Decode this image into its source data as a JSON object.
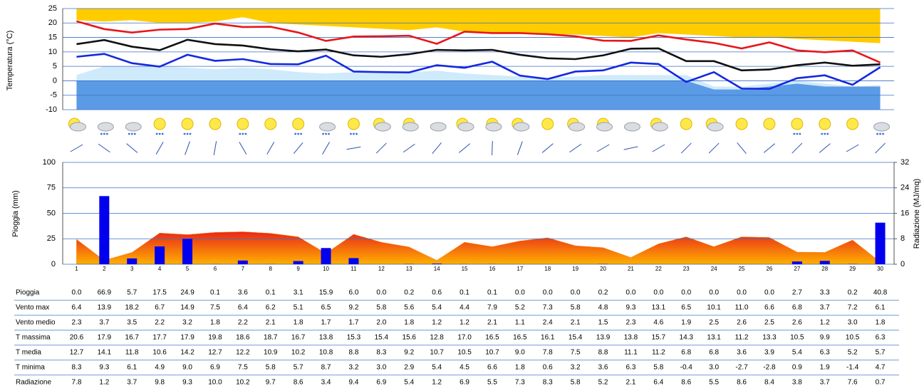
{
  "chart_data": [
    {
      "type": "line",
      "ylabel": "Temperatura (°C)",
      "ylim": [
        -10,
        25
      ],
      "yticks": [
        -10,
        -5,
        0,
        5,
        10,
        15,
        20,
        25
      ],
      "grid": true,
      "areas": [
        {
          "color": "#ffcc00",
          "base": 25,
          "values": [
            21,
            20.5,
            21,
            20,
            20,
            20.5,
            22,
            20,
            19.5,
            19,
            18.5,
            18,
            17.5,
            18.5,
            17,
            16.5,
            16.5,
            16,
            16,
            15.5,
            15,
            16.5,
            16,
            15.5,
            15,
            15,
            14.5,
            14,
            13.5,
            13
          ]
        },
        {
          "color": "#cfeafb",
          "base": -10,
          "values": [
            2,
            5,
            5,
            5,
            4.5,
            4,
            4.5,
            4,
            3,
            2.5,
            3,
            3.5,
            3,
            3.5,
            2.5,
            2,
            1.5,
            1,
            1.5,
            2,
            2,
            2,
            2,
            -2,
            -2,
            -1,
            0,
            -1,
            -2,
            -1.5
          ]
        },
        {
          "color": "#5b9be6",
          "base": -10,
          "values": [
            0,
            0,
            0,
            0,
            0,
            0,
            0,
            0,
            0,
            0,
            0,
            0,
            0,
            0,
            0,
            0,
            0,
            0,
            0,
            0,
            0,
            0,
            0,
            -3,
            -3,
            -2,
            -1,
            -2,
            -2,
            -2
          ]
        }
      ],
      "series": [
        {
          "name": "T massima",
          "color": "#e8161b",
          "values": [
            20.6,
            17.9,
            16.7,
            17.7,
            17.9,
            19.8,
            18.6,
            18.7,
            16.7,
            13.8,
            15.3,
            15.4,
            15.6,
            12.8,
            17,
            16.5,
            16.5,
            16.1,
            15.4,
            13.9,
            13.8,
            15.7,
            14.3,
            13.1,
            11.2,
            13.3,
            10.5,
            9.9,
            10.5,
            6.3
          ],
          "value_labels": [
            "20.6",
            "17.9",
            "16.7",
            "17.7",
            "17.9",
            "19.8",
            "18.6",
            "18.7",
            "16.7",
            "13.8",
            "15.3",
            "15.4",
            "15.6",
            "12.8",
            "17.0",
            "16.5",
            "16.5",
            "16.1",
            "15.4",
            "13.9",
            "13.8",
            "15.7",
            "14.3",
            "13.1",
            "11.2",
            "13.3",
            "10.5",
            "9.9",
            "10.5",
            "6.3"
          ]
        },
        {
          "name": "T media",
          "color": "#111111",
          "values": [
            12.7,
            14.1,
            11.8,
            10.6,
            14.2,
            12.7,
            12.2,
            10.9,
            10.2,
            10.8,
            8.8,
            8.3,
            9.2,
            10.7,
            10.5,
            10.7,
            9,
            7.8,
            7.5,
            8.8,
            11.1,
            11.2,
            6.8,
            6.8,
            3.6,
            3.9,
            5.4,
            6.3,
            5.2,
            5.7
          ],
          "value_labels": [
            "12.7",
            "14.1",
            "11.8",
            "10.6",
            "14.2",
            "12.7",
            "12.2",
            "10.9",
            "10.2",
            "10.8",
            "8.8",
            "8.3",
            "9.2",
            "10.7",
            "10.5",
            "10.7",
            "9.0",
            "7.8",
            "7.5",
            "8.8",
            "11.1",
            "11.2",
            "6.8",
            "6.8",
            "3.6",
            "3.9",
            "5.4",
            "6.3",
            "5.2",
            "5.7"
          ]
        },
        {
          "name": "T minima",
          "color": "#1428e0",
          "values": [
            8.3,
            9.3,
            6.1,
            4.9,
            9,
            6.9,
            7.5,
            5.8,
            5.7,
            8.7,
            3.2,
            3,
            2.9,
            5.4,
            4.5,
            6.6,
            1.8,
            0.6,
            3.2,
            3.6,
            6.3,
            5.8,
            -0.4,
            3,
            -2.7,
            -2.8,
            0.9,
            1.9,
            -1.4,
            4.7
          ],
          "value_labels": [
            "8.3",
            "9.3",
            "6.1",
            "4.9",
            "9.0",
            "6.9",
            "7.5",
            "5.8",
            "5.7",
            "8.7",
            "3.2",
            "3.0",
            "2.9",
            "5.4",
            "4.5",
            "6.6",
            "1.8",
            "0.6",
            "3.2",
            "3.6",
            "6.3",
            "5.8",
            "-0.4",
            "3.0",
            "-2.7",
            "-2.8",
            "0.9",
            "1.9",
            "-1.4",
            "4.7"
          ]
        }
      ]
    },
    {
      "type": "bar",
      "categories": [
        "1",
        "2",
        "3",
        "4",
        "5",
        "6",
        "7",
        "8",
        "9",
        "10",
        "11",
        "12",
        "13",
        "14",
        "15",
        "16",
        "17",
        "18",
        "19",
        "20",
        "21",
        "22",
        "23",
        "24",
        "25",
        "26",
        "27",
        "28",
        "29",
        "30"
      ],
      "ylabel": "Pioggia (mm)",
      "y2label": "Radiazione (MJ/mq)",
      "ylim": [
        0,
        100
      ],
      "yticks": [
        0,
        25,
        50,
        75,
        100
      ],
      "y2lim": [
        0,
        32
      ],
      "y2ticks": [
        0,
        8,
        16,
        24,
        32
      ],
      "grid": true,
      "series": [
        {
          "name": "Pioggia",
          "color": "#0000ee",
          "values": [
            0,
            66.9,
            5.7,
            17.5,
            24.9,
            0.1,
            3.6,
            0.1,
            3.1,
            15.9,
            6,
            0,
            0.2,
            0.6,
            0.1,
            0.1,
            0,
            0,
            0,
            0.2,
            0,
            0,
            0,
            0,
            0,
            0,
            2.7,
            3.3,
            0.2,
            40.8
          ],
          "value_labels": [
            "0.0",
            "66.9",
            "5.7",
            "17.5",
            "24.9",
            "0.1",
            "3.6",
            "0.1",
            "3.1",
            "15.9",
            "6.0",
            "0.0",
            "0.2",
            "0.6",
            "0.1",
            "0.1",
            "0.0",
            "0.0",
            "0.0",
            "0.2",
            "0.0",
            "0.0",
            "0.0",
            "0.0",
            "0.0",
            "0.0",
            "2.7",
            "3.3",
            "0.2",
            "40.8"
          ]
        },
        {
          "name": "Radiazione",
          "type": "area",
          "axis": "y2",
          "color": "#ff7a00",
          "values": [
            7.8,
            1.2,
            3.7,
            9.8,
            9.3,
            10,
            10.2,
            9.7,
            8.6,
            3.4,
            9.4,
            6.9,
            5.4,
            1.2,
            6.9,
            5.5,
            7.3,
            8.3,
            5.8,
            5.2,
            2.1,
            6.4,
            8.6,
            5.5,
            8.6,
            8.4,
            3.8,
            3.7,
            7.6,
            0.7
          ],
          "value_labels": [
            "7.8",
            "1.2",
            "3.7",
            "9.8",
            "9.3",
            "10.0",
            "10.2",
            "9.7",
            "8.6",
            "3.4",
            "9.4",
            "6.9",
            "5.4",
            "1.2",
            "6.9",
            "5.5",
            "7.3",
            "8.3",
            "5.8",
            "5.2",
            "2.1",
            "6.4",
            "8.6",
            "5.5",
            "8.6",
            "8.4",
            "3.8",
            "3.7",
            "7.6",
            "0.7"
          ]
        }
      ]
    }
  ],
  "table": {
    "rows": [
      {
        "name": "Vento max",
        "values": [
          "6.4",
          "13.9",
          "18.2",
          "6.7",
          "14.9",
          "7.5",
          "6.4",
          "6.2",
          "5.1",
          "6.5",
          "9.2",
          "5.8",
          "5.6",
          "5.4",
          "4.4",
          "7.9",
          "5.2",
          "7.3",
          "5.8",
          "4.8",
          "9.3",
          "13.1",
          "6.5",
          "10.1",
          "11.0",
          "6.6",
          "6.8",
          "3.7",
          "7.2",
          "6.1"
        ]
      },
      {
        "name": "Vento medio",
        "values": [
          "2.3",
          "3.7",
          "3.5",
          "2.2",
          "3.2",
          "1.8",
          "2.2",
          "2.1",
          "1.8",
          "1.7",
          "1.7",
          "2.0",
          "1.8",
          "1.2",
          "1.2",
          "2.1",
          "1.1",
          "2.4",
          "2.1",
          "1.5",
          "2.3",
          "4.6",
          "1.9",
          "2.5",
          "2.6",
          "2.5",
          "2.6",
          "1.2",
          "3.0",
          "1.8"
        ]
      }
    ]
  }
}
